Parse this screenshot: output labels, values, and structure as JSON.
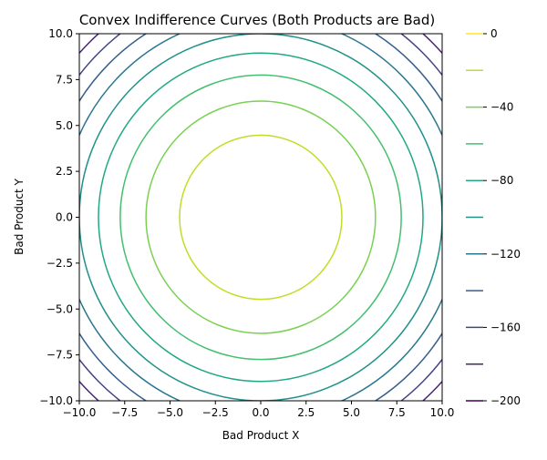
{
  "chart_data": {
    "type": "contour",
    "title": "Convex Indifference Curves (Both Products are Bad)",
    "xlabel": "Bad Product X",
    "ylabel": "Bad Product Y",
    "xlim": [
      -10,
      10
    ],
    "ylim": [
      -10,
      10
    ],
    "function": "-(x^2 + y^2)",
    "levels": [
      -200,
      -180,
      -160,
      -140,
      -120,
      -100,
      -80,
      -60,
      -40,
      -20,
      0
    ],
    "level_colors": [
      "#440154",
      "#482475",
      "#414487",
      "#355f8d",
      "#2a788e",
      "#21918c",
      "#22a884",
      "#44bf70",
      "#7ad151",
      "#bddf26",
      "#fde725"
    ],
    "x_ticks": [
      -10,
      -7.5,
      -5,
      -2.5,
      0,
      2.5,
      5,
      7.5,
      10
    ],
    "y_ticks": [
      -10,
      -7.5,
      -5,
      -2.5,
      0,
      2.5,
      5,
      7.5,
      10
    ],
    "x_tick_labels": [
      "−10.0",
      "−7.5",
      "−5.0",
      "−2.5",
      "0.0",
      "2.5",
      "5.0",
      "7.5",
      "10.0"
    ],
    "y_tick_labels": [
      "−10.0",
      "−7.5",
      "−5.0",
      "−2.5",
      "0.0",
      "2.5",
      "5.0",
      "7.5",
      "10.0"
    ],
    "colorbar": {
      "ticks": [
        0,
        -40,
        -80,
        -120,
        -160,
        -200
      ],
      "tick_labels": [
        "0",
        "−40",
        "−80",
        "−120",
        "−160",
        "−200"
      ]
    },
    "grid": false
  }
}
